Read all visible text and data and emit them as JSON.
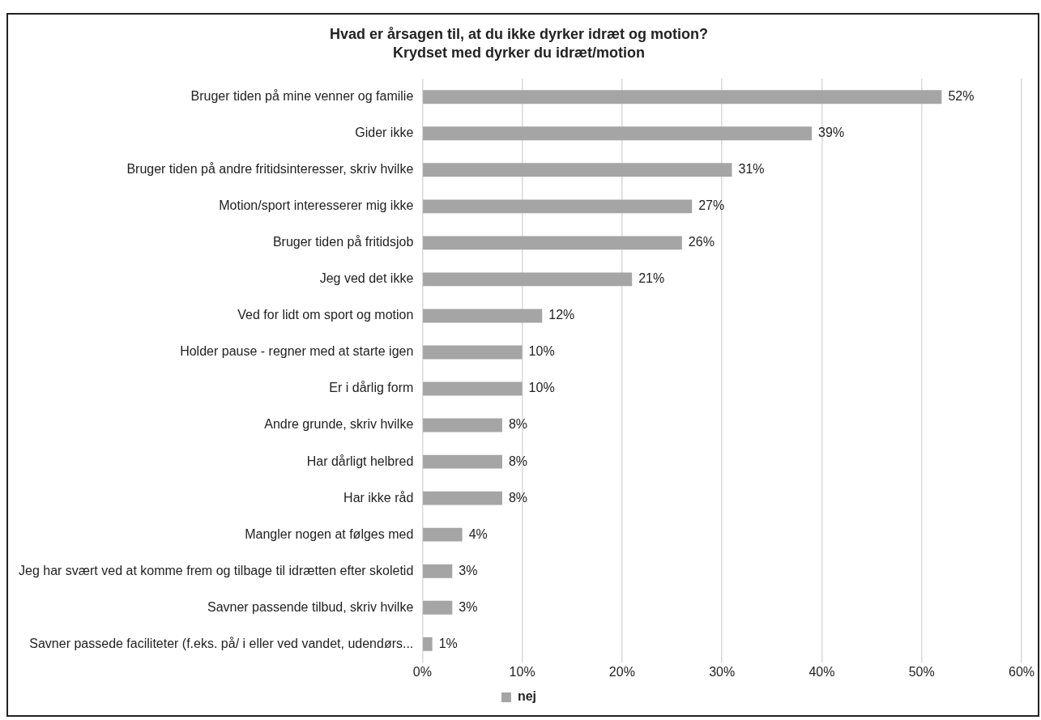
{
  "chart_data": {
    "type": "bar",
    "orientation": "horizontal",
    "title": "Hvad er årsagen til, at du ikke dyrker idræt og motion?",
    "subtitle": "Krydset med dyrker du idræt/motion",
    "categories": [
      "Bruger tiden på mine venner og familie",
      "Gider ikke",
      "Bruger tiden på andre fritidsinteresser, skriv hvilke",
      "Motion/sport interesserer mig ikke",
      "Bruger tiden på fritidsjob",
      "Jeg ved det ikke",
      "Ved for lidt om sport og motion",
      "Holder pause - regner med at starte igen",
      "Er i dårlig form",
      "Andre grunde, skriv hvilke",
      "Har dårligt helbred",
      "Har ikke råd",
      "Mangler nogen at følges med",
      "Jeg har svært ved at komme frem og tilbage til idrætten efter skoletid",
      "Savner passende tilbud, skriv hvilke",
      "Savner passede faciliteter (f.eks. på/ i eller ved vandet, udendørs..."
    ],
    "series": [
      {
        "name": "nej",
        "color": "#a5a5a5",
        "values": [
          52,
          39,
          31,
          27,
          26,
          21,
          12,
          10,
          10,
          8,
          8,
          8,
          4,
          3,
          3,
          1
        ],
        "value_labels": [
          "52%",
          "39%",
          "31%",
          "27%",
          "26%",
          "21%",
          "12%",
          "10%",
          "10%",
          "8%",
          "8%",
          "8%",
          "4%",
          "3%",
          "3%",
          "1%"
        ]
      }
    ],
    "xlim": [
      0,
      60
    ],
    "xticks": [
      {
        "value": 0,
        "label": "0%"
      },
      {
        "value": 10,
        "label": "10%"
      },
      {
        "value": 20,
        "label": "20%"
      },
      {
        "value": 30,
        "label": "30%"
      },
      {
        "value": 40,
        "label": "40%"
      },
      {
        "value": 50,
        "label": "50%"
      },
      {
        "value": 60,
        "label": "60%"
      }
    ],
    "grid": "x",
    "legend": "bottom"
  }
}
